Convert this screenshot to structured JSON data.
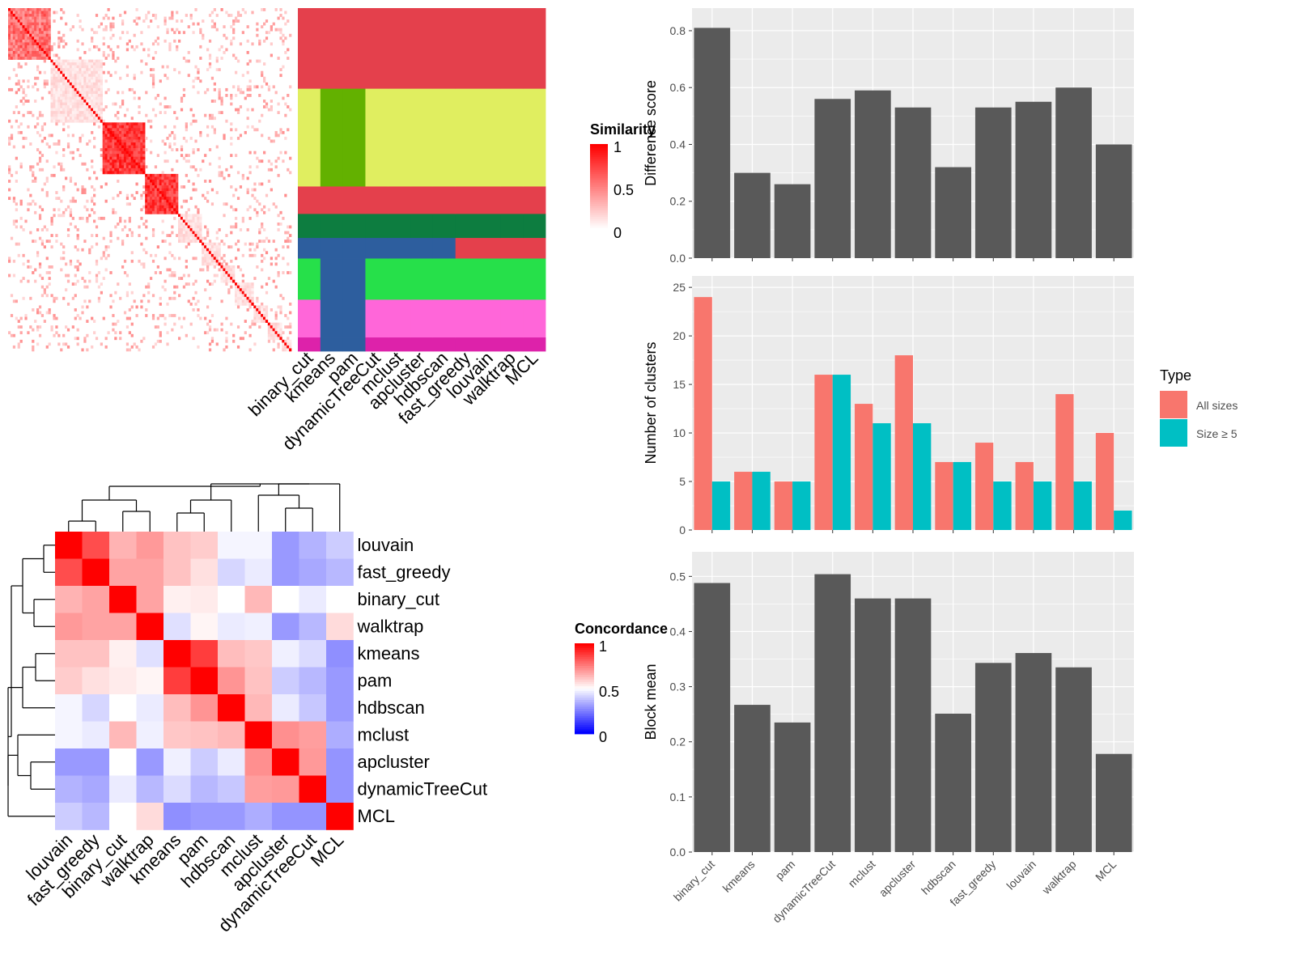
{
  "methods_heatmap_order": [
    "binary_cut",
    "kmeans",
    "pam",
    "dynamicTreeCut",
    "mclust",
    "apcluster",
    "hdbscan",
    "fast_greedy",
    "louvain",
    "walktrap",
    "MCL"
  ],
  "similarity_legend": {
    "title": "Similarity",
    "ticks": [
      "1",
      "0.5",
      "0"
    ]
  },
  "concordance_legend": {
    "title": "Concordance",
    "ticks": [
      "1",
      "0.5",
      "0"
    ]
  },
  "concordance_order": [
    "louvain",
    "fast_greedy",
    "binary_cut",
    "walktrap",
    "kmeans",
    "pam",
    "hdbscan",
    "mclust",
    "apcluster",
    "dynamicTreeCut",
    "MCL"
  ],
  "colors": {
    "panel_bg": "#EBEBEB",
    "bar_gray": "#595959",
    "all_sizes": "#F8766D",
    "size_ge5": "#00BFC4",
    "high": "#FF0000",
    "mid": "#FFFFFF",
    "low": "#0000FF"
  },
  "chart_data": [
    {
      "type": "heatmap",
      "name": "concordance",
      "rows": [
        "louvain",
        "fast_greedy",
        "binary_cut",
        "walktrap",
        "kmeans",
        "pam",
        "hdbscan",
        "mclust",
        "apcluster",
        "dynamicTreeCut",
        "MCL"
      ],
      "cols": [
        "louvain",
        "fast_greedy",
        "binary_cut",
        "walktrap",
        "kmeans",
        "pam",
        "hdbscan",
        "mclust",
        "apcluster",
        "dynamicTreeCut",
        "MCL"
      ],
      "values": [
        [
          1.0,
          0.85,
          0.65,
          0.7,
          0.62,
          0.6,
          0.48,
          0.48,
          0.3,
          0.35,
          0.4
        ],
        [
          0.85,
          1.0,
          0.68,
          0.68,
          0.62,
          0.56,
          0.42,
          0.46,
          0.3,
          0.33,
          0.36
        ],
        [
          0.65,
          0.68,
          1.0,
          0.68,
          0.53,
          0.54,
          0.5,
          0.64,
          0.5,
          0.46,
          0.5
        ],
        [
          0.7,
          0.68,
          0.68,
          1.0,
          0.44,
          0.52,
          0.46,
          0.47,
          0.3,
          0.36,
          0.57
        ],
        [
          0.62,
          0.62,
          0.53,
          0.44,
          1.0,
          0.88,
          0.63,
          0.61,
          0.47,
          0.43,
          0.28
        ],
        [
          0.6,
          0.56,
          0.54,
          0.52,
          0.88,
          1.0,
          0.71,
          0.62,
          0.4,
          0.36,
          0.3
        ],
        [
          0.48,
          0.42,
          0.5,
          0.46,
          0.63,
          0.71,
          1.0,
          0.64,
          0.46,
          0.39,
          0.3
        ],
        [
          0.48,
          0.46,
          0.64,
          0.47,
          0.61,
          0.62,
          0.64,
          1.0,
          0.72,
          0.69,
          0.34
        ],
        [
          0.3,
          0.3,
          0.5,
          0.3,
          0.47,
          0.4,
          0.46,
          0.72,
          1.0,
          0.7,
          0.29
        ],
        [
          0.35,
          0.33,
          0.46,
          0.36,
          0.43,
          0.36,
          0.39,
          0.69,
          0.7,
          1.0,
          0.29
        ],
        [
          0.4,
          0.36,
          0.5,
          0.57,
          0.28,
          0.3,
          0.3,
          0.34,
          0.29,
          0.29,
          1.0
        ]
      ]
    },
    {
      "type": "bar",
      "name": "difference",
      "categories": [
        "binary_cut",
        "kmeans",
        "pam",
        "dynamicTreeCut",
        "mclust",
        "apcluster",
        "hdbscan",
        "fast_greedy",
        "louvain",
        "walktrap",
        "MCL"
      ],
      "values": [
        0.81,
        0.3,
        0.26,
        0.56,
        0.59,
        0.53,
        0.32,
        0.53,
        0.55,
        0.6,
        0.4
      ],
      "ylabel": "Difference score",
      "ylim": [
        0,
        0.84
      ],
      "yticks": [
        "0.0",
        "0.2",
        "0.4",
        "0.6",
        "0.8"
      ],
      "grid": true
    },
    {
      "type": "bar",
      "name": "clusters",
      "categories": [
        "binary_cut",
        "kmeans",
        "pam",
        "dynamicTreeCut",
        "mclust",
        "apcluster",
        "hdbscan",
        "fast_greedy",
        "louvain",
        "walktrap",
        "MCL"
      ],
      "series": [
        {
          "name": "All sizes",
          "values": [
            24,
            6,
            5,
            16,
            13,
            18,
            7,
            9,
            7,
            14,
            10
          ]
        },
        {
          "name": "Size ≥ 5",
          "values": [
            5,
            6,
            5,
            16,
            11,
            11,
            7,
            5,
            5,
            5,
            2
          ]
        }
      ],
      "ylabel": "Number of clusters",
      "ylim": [
        0,
        25
      ],
      "yticks": [
        "0",
        "5",
        "10",
        "15",
        "20",
        "25"
      ],
      "legend_title": "Type",
      "legend_position": "right",
      "grid": true
    },
    {
      "type": "bar",
      "name": "blockmean",
      "categories": [
        "binary_cut",
        "kmeans",
        "pam",
        "dynamicTreeCut",
        "mclust",
        "apcluster",
        "hdbscan",
        "fast_greedy",
        "louvain",
        "walktrap",
        "MCL"
      ],
      "values": [
        0.488,
        0.267,
        0.235,
        0.504,
        0.46,
        0.46,
        0.251,
        0.343,
        0.361,
        0.335,
        0.178
      ],
      "ylabel": "Block mean",
      "ylim": [
        0,
        0.52
      ],
      "yticks": [
        "0.0",
        "0.1",
        "0.2",
        "0.3",
        "0.4",
        "0.5"
      ],
      "grid": true
    }
  ]
}
